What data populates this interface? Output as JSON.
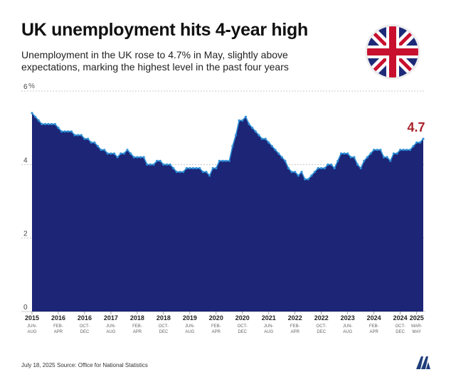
{
  "title": "UK unemployment hits 4-year high",
  "subtitle": "Unemployment in the UK rose to 4.7% in May, slightly above expectations, marking the highest level in the past four years",
  "footer": {
    "date": "July 18, 2025",
    "source": "Source: Office for National Statistics"
  },
  "flag_icon": "uk-flag-icon",
  "logo_text": "AA",
  "colors": {
    "area": "#1c2576",
    "line": "#2f8fd6",
    "highlight": "#a8232b"
  },
  "chart_data": {
    "type": "area",
    "ylabel": "%",
    "ylim": [
      0,
      6
    ],
    "yticks": [
      0,
      2,
      4,
      6
    ],
    "x_start": "2015-06",
    "x_end": "2025-05",
    "annotation": "4.7",
    "xticks": [
      {
        "year": "2015",
        "period": "JUN-AUG",
        "date": "2015-06"
      },
      {
        "year": "2016",
        "period": "FEB-APR",
        "date": "2016-02"
      },
      {
        "year": "2016",
        "period": "OCT-DEC",
        "date": "2016-10"
      },
      {
        "year": "2017",
        "period": "JUN-AUG",
        "date": "2017-06"
      },
      {
        "year": "2018",
        "period": "FEB-APR",
        "date": "2018-02"
      },
      {
        "year": "2018",
        "period": "OCT-DEC",
        "date": "2018-10"
      },
      {
        "year": "2019",
        "period": "JUN-AUG",
        "date": "2019-06"
      },
      {
        "year": "2020",
        "period": "FEB-APR",
        "date": "2020-02"
      },
      {
        "year": "2020",
        "period": "OCT-DEC",
        "date": "2020-10"
      },
      {
        "year": "2021",
        "period": "JUN-AUG",
        "date": "2021-06"
      },
      {
        "year": "2022",
        "period": "FEB-APR",
        "date": "2022-02"
      },
      {
        "year": "2022",
        "period": "OCT-DEC",
        "date": "2022-10"
      },
      {
        "year": "2023",
        "period": "JUN-AUG",
        "date": "2023-06"
      },
      {
        "year": "2024",
        "period": "FEB-APR",
        "date": "2024-02"
      },
      {
        "year": "2024",
        "period": "OCT-DEC",
        "date": "2024-10"
      },
      {
        "year": "2025",
        "period": "MAR-MAY",
        "date": "2025-03"
      }
    ],
    "series": [
      {
        "values": [
          [
            "2015-06",
            5.4
          ],
          [
            "2015-07",
            5.3
          ],
          [
            "2015-08",
            5.2
          ],
          [
            "2015-09",
            5.1
          ],
          [
            "2015-10",
            5.1
          ],
          [
            "2015-11",
            5.1
          ],
          [
            "2015-12",
            5.1
          ],
          [
            "2016-01",
            5.1
          ],
          [
            "2016-02",
            5.0
          ],
          [
            "2016-03",
            4.9
          ],
          [
            "2016-04",
            4.9
          ],
          [
            "2016-05",
            4.9
          ],
          [
            "2016-06",
            4.9
          ],
          [
            "2016-07",
            4.8
          ],
          [
            "2016-08",
            4.8
          ],
          [
            "2016-09",
            4.8
          ],
          [
            "2016-10",
            4.7
          ],
          [
            "2016-11",
            4.7
          ],
          [
            "2016-12",
            4.6
          ],
          [
            "2017-01",
            4.6
          ],
          [
            "2017-02",
            4.5
          ],
          [
            "2017-03",
            4.4
          ],
          [
            "2017-04",
            4.4
          ],
          [
            "2017-05",
            4.3
          ],
          [
            "2017-06",
            4.3
          ],
          [
            "2017-07",
            4.3
          ],
          [
            "2017-08",
            4.2
          ],
          [
            "2017-09",
            4.3
          ],
          [
            "2017-10",
            4.3
          ],
          [
            "2017-11",
            4.4
          ],
          [
            "2017-12",
            4.3
          ],
          [
            "2018-01",
            4.2
          ],
          [
            "2018-02",
            4.2
          ],
          [
            "2018-03",
            4.2
          ],
          [
            "2018-04",
            4.2
          ],
          [
            "2018-05",
            4.0
          ],
          [
            "2018-06",
            4.0
          ],
          [
            "2018-07",
            4.0
          ],
          [
            "2018-08",
            4.1
          ],
          [
            "2018-09",
            4.1
          ],
          [
            "2018-10",
            4.0
          ],
          [
            "2018-11",
            4.0
          ],
          [
            "2018-12",
            4.0
          ],
          [
            "2019-01",
            3.9
          ],
          [
            "2019-02",
            3.8
          ],
          [
            "2019-03",
            3.8
          ],
          [
            "2019-04",
            3.8
          ],
          [
            "2019-05",
            3.9
          ],
          [
            "2019-06",
            3.9
          ],
          [
            "2019-07",
            3.9
          ],
          [
            "2019-08",
            3.9
          ],
          [
            "2019-09",
            3.9
          ],
          [
            "2019-10",
            3.8
          ],
          [
            "2019-11",
            3.8
          ],
          [
            "2019-12",
            3.7
          ],
          [
            "2020-01",
            3.9
          ],
          [
            "2020-02",
            3.9
          ],
          [
            "2020-03",
            4.1
          ],
          [
            "2020-04",
            4.1
          ],
          [
            "2020-05",
            4.1
          ],
          [
            "2020-06",
            4.1
          ],
          [
            "2020-07",
            4.5
          ],
          [
            "2020-08",
            4.8
          ],
          [
            "2020-09",
            5.2
          ],
          [
            "2020-10",
            5.2
          ],
          [
            "2020-11",
            5.3
          ],
          [
            "2020-12",
            5.1
          ],
          [
            "2021-01",
            5.0
          ],
          [
            "2021-02",
            4.9
          ],
          [
            "2021-03",
            4.8
          ],
          [
            "2021-04",
            4.7
          ],
          [
            "2021-05",
            4.7
          ],
          [
            "2021-06",
            4.6
          ],
          [
            "2021-07",
            4.5
          ],
          [
            "2021-08",
            4.4
          ],
          [
            "2021-09",
            4.3
          ],
          [
            "2021-10",
            4.2
          ],
          [
            "2021-11",
            4.1
          ],
          [
            "2021-12",
            3.9
          ],
          [
            "2022-01",
            3.8
          ],
          [
            "2022-02",
            3.8
          ],
          [
            "2022-03",
            3.7
          ],
          [
            "2022-04",
            3.8
          ],
          [
            "2022-05",
            3.6
          ],
          [
            "2022-06",
            3.6
          ],
          [
            "2022-07",
            3.7
          ],
          [
            "2022-08",
            3.8
          ],
          [
            "2022-09",
            3.9
          ],
          [
            "2022-10",
            3.9
          ],
          [
            "2022-11",
            3.9
          ],
          [
            "2022-12",
            4.0
          ],
          [
            "2023-01",
            4.0
          ],
          [
            "2023-02",
            3.9
          ],
          [
            "2023-03",
            4.1
          ],
          [
            "2023-04",
            4.3
          ],
          [
            "2023-05",
            4.3
          ],
          [
            "2023-06",
            4.3
          ],
          [
            "2023-07",
            4.2
          ],
          [
            "2023-08",
            4.2
          ],
          [
            "2023-09",
            4.0
          ],
          [
            "2023-10",
            3.9
          ],
          [
            "2023-11",
            4.1
          ],
          [
            "2023-12",
            4.2
          ],
          [
            "2024-01",
            4.3
          ],
          [
            "2024-02",
            4.4
          ],
          [
            "2024-03",
            4.4
          ],
          [
            "2024-04",
            4.4
          ],
          [
            "2024-05",
            4.2
          ],
          [
            "2024-06",
            4.2
          ],
          [
            "2024-07",
            4.1
          ],
          [
            "2024-08",
            4.3
          ],
          [
            "2024-09",
            4.3
          ],
          [
            "2024-10",
            4.4
          ],
          [
            "2024-11",
            4.4
          ],
          [
            "2024-12",
            4.4
          ],
          [
            "2025-01",
            4.4
          ],
          [
            "2025-02",
            4.5
          ],
          [
            "2025-03",
            4.6
          ],
          [
            "2025-04",
            4.6
          ],
          [
            "2025-05",
            4.7
          ]
        ]
      }
    ]
  }
}
